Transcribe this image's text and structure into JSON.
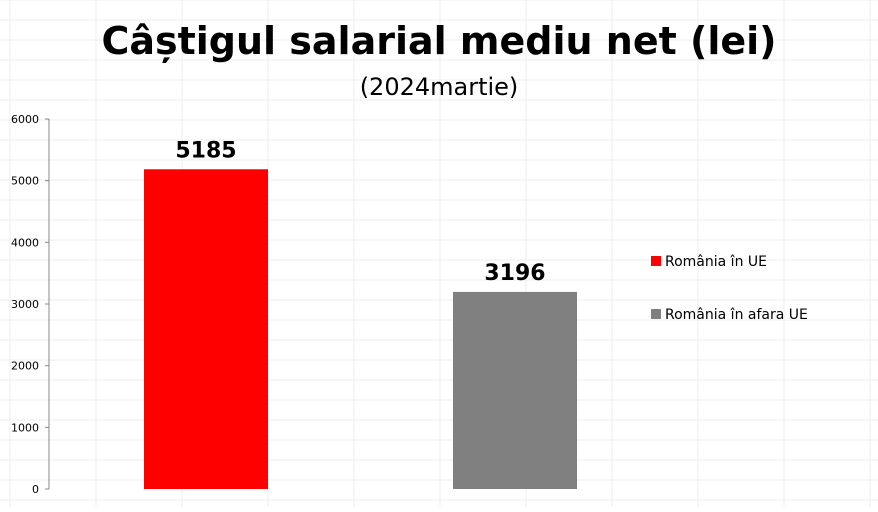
{
  "chart_data": {
    "type": "bar",
    "title": "Câștigul salarial mediu net (lei)",
    "subtitle": "(2024martie)",
    "xlabel": "",
    "ylabel": "",
    "categories": [
      "România în UE",
      "România în afara UE"
    ],
    "values": [
      5185,
      3196
    ],
    "colors": [
      "#ff0000",
      "#808080"
    ],
    "ylim": [
      0,
      6000
    ],
    "yticks": [
      0,
      1000,
      2000,
      3000,
      4000,
      5000,
      6000
    ],
    "data_labels": [
      "5185",
      "3196"
    ],
    "legend": {
      "position": "right",
      "entries": [
        "România în UE",
        "România în afara UE"
      ]
    },
    "grid": false
  }
}
